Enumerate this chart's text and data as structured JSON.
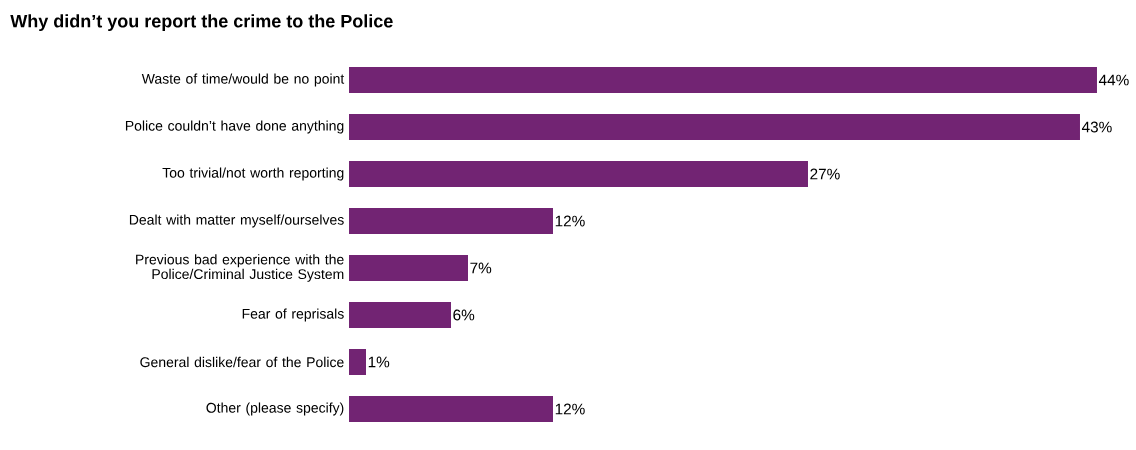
{
  "chart_data": {
    "type": "bar",
    "orientation": "horizontal",
    "title": "Why didn’t you report the crime to the Police",
    "categories": [
      "Waste of time/would be no point",
      "Police couldn’t have done anything",
      "Too trivial/not worth reporting",
      "Dealt with matter myself/ourselves",
      "Previous bad experience with the Police/Criminal Justice System",
      "Fear of reprisals",
      "General dislike/fear of the Police",
      "Other (please specify)"
    ],
    "values": [
      44,
      43,
      27,
      12,
      7,
      6,
      1,
      12
    ],
    "value_labels": [
      "44%",
      "43%",
      "27%",
      "12%",
      "7%",
      "6%",
      "1%",
      "12%"
    ],
    "color": "#722473"
  }
}
